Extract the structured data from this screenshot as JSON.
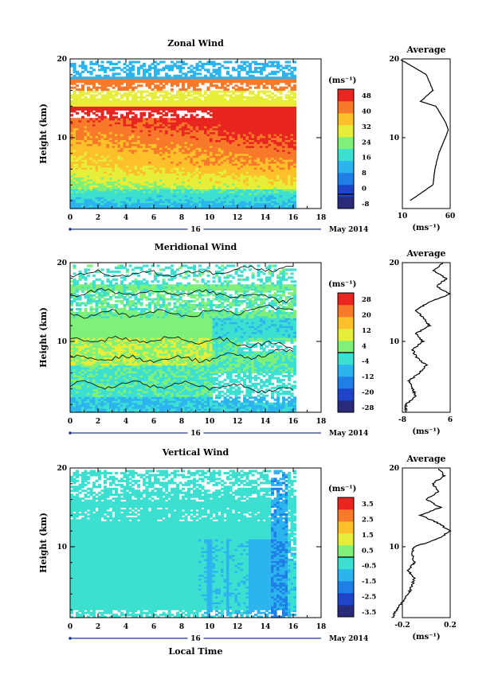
{
  "panels": [
    {
      "id": "zonal",
      "title": "Zonal Wind",
      "ylabel": "Height (km)",
      "y_ticks": [
        "10",
        "20"
      ],
      "x_ticks": [
        "0",
        "2",
        "4",
        "6",
        "8",
        "10",
        "12",
        "14",
        "16",
        "18"
      ],
      "date_day": "16",
      "date_month": "May 2014",
      "units": "(ms⁻¹)",
      "cbar_labels": [
        "48",
        "40",
        "32",
        "24",
        "16",
        "8",
        "0",
        "-8"
      ],
      "avg_title": "Average",
      "avg_x_ticks": [
        "10",
        "60"
      ],
      "avg_y_ticks": [
        "10",
        "20"
      ],
      "avg_units": "(ms⁻¹)"
    },
    {
      "id": "meridional",
      "title": "Meridional Wind",
      "ylabel": "Height (km)",
      "y_ticks": [
        "10",
        "20"
      ],
      "x_ticks": [
        "0",
        "2",
        "4",
        "6",
        "8",
        "10",
        "12",
        "14",
        "16",
        "18"
      ],
      "date_day": "16",
      "date_month": "May 2014",
      "units": "(ms⁻¹)",
      "cbar_labels": [
        "28",
        "20",
        "12",
        "4",
        "-4",
        "-12",
        "-20",
        "-28"
      ],
      "avg_title": "Average",
      "avg_x_ticks": [
        "-8",
        "6"
      ],
      "avg_y_ticks": [
        "10",
        "20"
      ],
      "avg_units": "(ms⁻¹)"
    },
    {
      "id": "vertical",
      "title": "Vertical Wind",
      "ylabel": "Height (km)",
      "y_ticks": [
        "10",
        "20"
      ],
      "x_ticks": [
        "0",
        "2",
        "4",
        "6",
        "8",
        "10",
        "12",
        "14",
        "16",
        "18"
      ],
      "date_day": "16",
      "date_month": "May 2014",
      "units": "(ms⁻¹)",
      "cbar_labels": [
        "3.5",
        "2.5",
        "1.5",
        "0.5",
        "-0.5",
        "-1.5",
        "-2.5",
        "-3.5"
      ],
      "avg_title": "Average",
      "avg_x_ticks": [
        "-0.2",
        "0.2"
      ],
      "avg_y_ticks": [
        "10",
        "20"
      ],
      "avg_units": "(ms⁻¹)"
    }
  ],
  "xlabel": "Local Time",
  "chart_data": [
    {
      "type": "heatmap",
      "title": "Zonal Wind",
      "xlabel": "Local Time",
      "ylabel": "Height (km)",
      "xlim": [
        0,
        18
      ],
      "ylim": [
        1,
        20
      ],
      "data_x_range": [
        0,
        16
      ],
      "colorbar_range": [
        -8,
        48
      ],
      "colorbar_units": "(ms⁻¹)",
      "profile_heights": [
        20,
        18,
        16,
        14.6,
        14,
        12,
        11,
        10,
        8,
        6,
        4,
        2
      ],
      "profile_values": [
        7,
        35,
        42,
        29,
        45,
        55,
        58,
        55,
        48,
        44,
        42,
        18
      ]
    },
    {
      "type": "heatmap",
      "title": "Meridional Wind",
      "xlabel": "Local Time",
      "ylabel": "Height (km)",
      "xlim": [
        0,
        18
      ],
      "ylim": [
        1,
        20
      ],
      "data_x_range": [
        0,
        16
      ],
      "colorbar_range": [
        -28,
        28
      ],
      "colorbar_units": "(ms⁻¹)",
      "profile_heights": [
        20,
        19,
        18,
        17,
        16,
        15,
        14,
        13,
        12,
        11,
        10,
        9,
        8,
        7,
        6,
        5,
        4,
        3,
        2,
        1
      ],
      "profile_values": [
        4,
        1,
        5,
        2,
        6,
        0,
        -4,
        -2,
        0,
        -4,
        -2,
        -5,
        -4,
        -1,
        -3,
        -6,
        -5,
        -4,
        -7,
        -7
      ]
    },
    {
      "type": "heatmap",
      "title": "Vertical Wind",
      "xlabel": "Local Time",
      "ylabel": "Height (km)",
      "xlim": [
        0,
        18
      ],
      "ylim": [
        1,
        20
      ],
      "data_x_range": [
        0,
        16
      ],
      "colorbar_range": [
        -3.5,
        3.5
      ],
      "colorbar_units": "(ms⁻¹)",
      "profile_heights": [
        20,
        19,
        18,
        17,
        16,
        15,
        14,
        13,
        12,
        11,
        10,
        9,
        8,
        7,
        6,
        5,
        4,
        3,
        2,
        1
      ],
      "profile_values": [
        0.1,
        0.15,
        0.05,
        0.1,
        0.0,
        0.12,
        -0.05,
        0.1,
        0.2,
        0.1,
        -0.1,
        -0.12,
        -0.1,
        -0.15,
        -0.1,
        -0.12,
        -0.15,
        -0.2,
        -0.25,
        -0.28
      ]
    }
  ]
}
